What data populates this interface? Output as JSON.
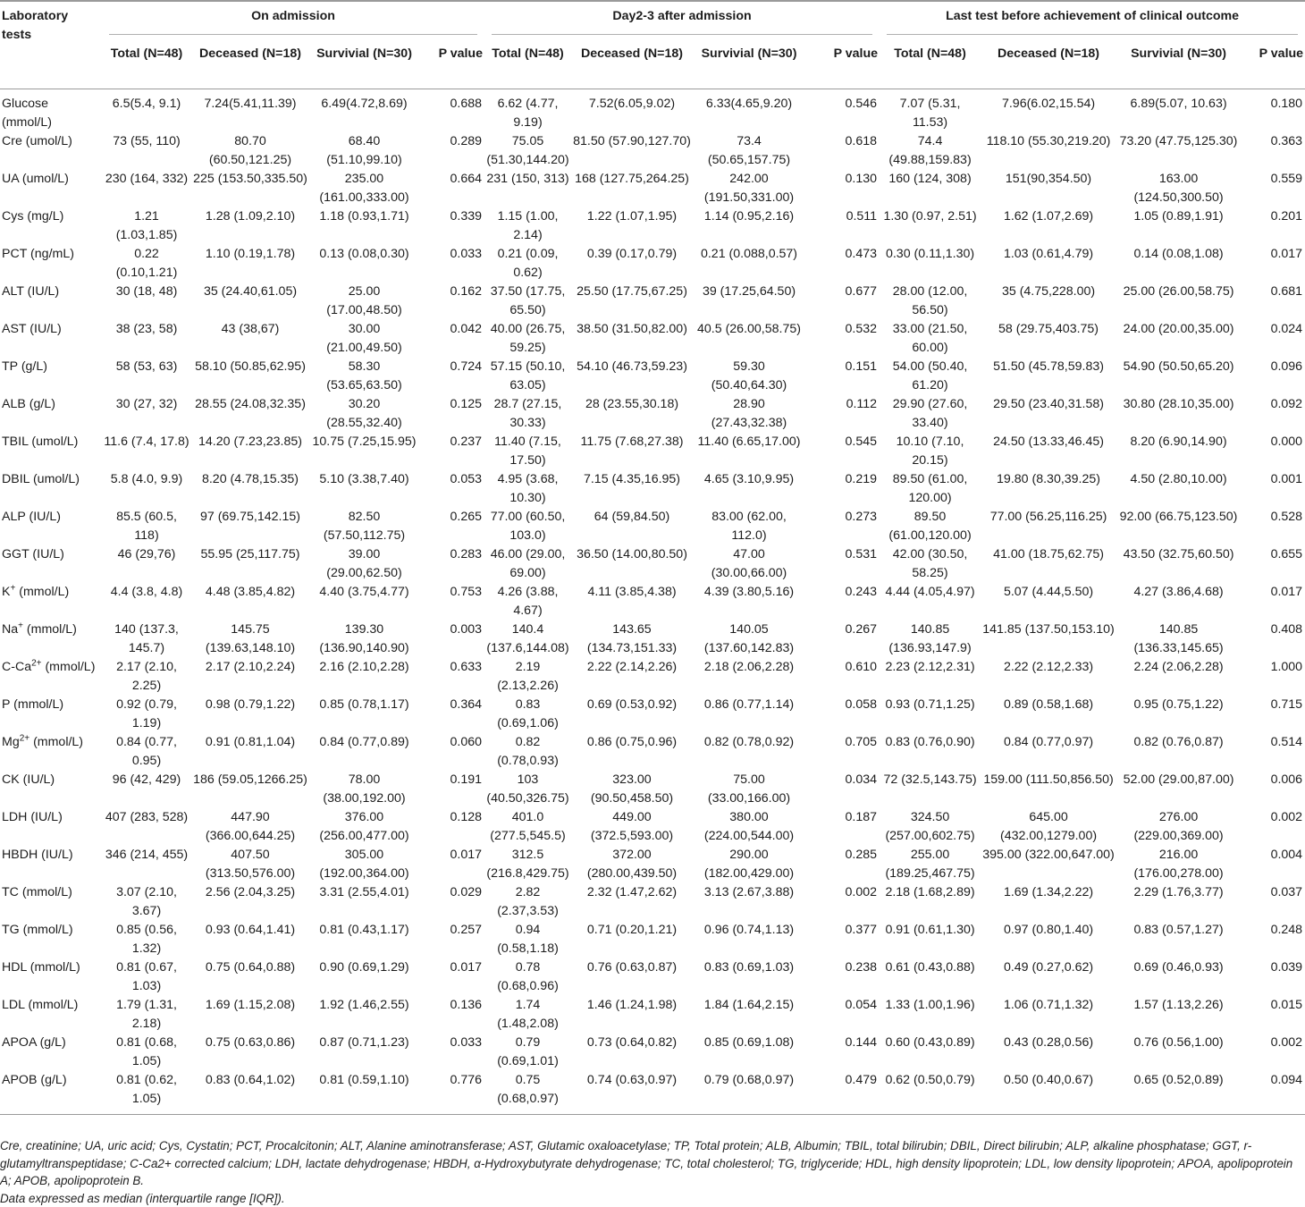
{
  "header": {
    "first_col": "Laboratory tests",
    "groups": [
      "On admission",
      "Day2-3 after admission",
      "Last test before achievement of clinical outcome"
    ],
    "subcols": [
      "Total (N=48)",
      "Deceased (N=18)",
      "Survivial (N=30)",
      "P value"
    ]
  },
  "rows": [
    {
      "name": "Glucose (mmol/L)",
      "c": [
        "6.5(5.4, 9.1)",
        "7.24(5.41,11.39)",
        "6.49(4.72,8.69)",
        "0.688",
        "6.62 (4.77, 9.19)",
        "7.52(6.05,9.02)",
        "6.33(4.65,9.20)",
        "0.546",
        "7.07 (5.31, 11.53)",
        "7.96(6.02,15.54)",
        "6.89(5.07, 10.63)",
        "0.180"
      ]
    },
    {
      "name": "Cre (umol/L)",
      "c": [
        "73 (55, 110)",
        "80.70 (60.50,121.25)",
        "68.40 (51.10,99.10)",
        "0.289",
        "75.05 (51.30,144.20)",
        "81.50 (57.90,127.70)",
        "73.4 (50.65,157.75)",
        "0.618",
        "74.4 (49.88,159.83)",
        "118.10 (55.30,219.20)",
        "73.20 (47.75,125.30)",
        "0.363"
      ]
    },
    {
      "name": "UA (umol/L)",
      "c": [
        "230 (164, 332)",
        "225 (153.50,335.50)",
        "235.00 (161.00,333.00)",
        "0.664",
        "231 (150, 313)",
        "168 (127.75,264.25)",
        "242.00 (191.50,331.00)",
        "0.130",
        "160 (124, 308)",
        "151(90,354.50)",
        "163.00 (124.50,300.50)",
        "0.559"
      ]
    },
    {
      "name": "Cys (mg/L)",
      "c": [
        "1.21 (1.03,1.85)",
        "1.28 (1.09,2.10)",
        "1.18 (0.93,1.71)",
        "0.339",
        "1.15 (1.00, 2.14)",
        "1.22 (1.07,1.95)",
        "1.14 (0.95,2.16)",
        "0.511",
        "1.30 (0.97, 2.51)",
        "1.62 (1.07,2.69)",
        "1.05 (0.89,1.91)",
        "0.201"
      ]
    },
    {
      "name": "PCT (ng/mL)",
      "c": [
        "0.22 (0.10,1.21)",
        "1.10 (0.19,1.78)",
        "0.13 (0.08,0.30)",
        "0.033",
        "0.21 (0.09, 0.62)",
        "0.39 (0.17,0.79)",
        "0.21 (0.088,0.57)",
        "0.473",
        "0.30 (0.11,1.30)",
        "1.03 (0.61,4.79)",
        "0.14 (0.08,1.08)",
        "0.017"
      ]
    },
    {
      "name": "ALT (IU/L)",
      "c": [
        "30 (18, 48)",
        "35 (24.40,61.05)",
        "25.00 (17.00,48.50)",
        "0.162",
        "37.50 (17.75, 65.50)",
        "25.50 (17.75,67.25)",
        "39 (17.25,64.50)",
        "0.677",
        "28.00 (12.00, 56.50)",
        "35 (4.75,228.00)",
        "25.00 (26.00,58.75)",
        "0.681"
      ]
    },
    {
      "name": "AST (IU/L)",
      "c": [
        "38 (23, 58)",
        "43 (38,67)",
        "30.00 (21.00,49.50)",
        "0.042",
        "40.00 (26.75, 59.25)",
        "38.50 (31.50,82.00)",
        "40.5 (26.00,58.75)",
        "0.532",
        "33.00 (21.50, 60.00)",
        "58 (29.75,403.75)",
        "24.00 (20.00,35.00)",
        "0.024"
      ]
    },
    {
      "name": "TP (g/L)",
      "c": [
        "58 (53, 63)",
        "58.10 (50.85,62.95)",
        "58.30 (53.65,63.50)",
        "0.724",
        "57.15 (50.10, 63.05)",
        "54.10 (46.73,59.23)",
        "59.30 (50.40,64.30)",
        "0.151",
        "54.00 (50.40, 61.20)",
        "51.50 (45.78,59.83)",
        "54.90 (50.50,65.20)",
        "0.096"
      ]
    },
    {
      "name": "ALB (g/L)",
      "c": [
        "30 (27, 32)",
        "28.55 (24.08,32.35)",
        "30.20 (28.55,32.40)",
        "0.125",
        "28.7 (27.15, 30.33)",
        "28 (23.55,30.18)",
        "28.90 (27.43,32.38)",
        "0.112",
        "29.90 (27.60, 33.40)",
        "29.50 (23.40,31.58)",
        "30.80 (28.10,35.00)",
        "0.092"
      ]
    },
    {
      "name": "TBIL (umol/L)",
      "c": [
        "11.6 (7.4, 17.8)",
        "14.20 (7.23,23.85)",
        "10.75 (7.25,15.95)",
        "0.237",
        "11.40 (7.15, 17.50)",
        "11.75 (7.68,27.38)",
        "11.40 (6.65,17.00)",
        "0.545",
        "10.10 (7.10, 20.15)",
        "24.50 (13.33,46.45)",
        "8.20 (6.90,14.90)",
        "0.000"
      ]
    },
    {
      "name": "DBIL (umol/L)",
      "c": [
        "5.8 (4.0, 9.9)",
        "8.20 (4.78,15.35)",
        "5.10 (3.38,7.40)",
        "0.053",
        "4.95 (3.68, 10.30)",
        "7.15 (4.35,16.95)",
        "4.65 (3.10,9.95)",
        "0.219",
        "89.50 (61.00, 120.00)",
        "19.80 (8.30,39.25)",
        "4.50 (2.80,10.00)",
        "0.001"
      ]
    },
    {
      "name": "ALP (IU/L)",
      "c": [
        "85.5 (60.5, 118)",
        "97 (69.75,142.15)",
        "82.50 (57.50,112.75)",
        "0.265",
        "77.00 (60.50, 103.0)",
        "64 (59,84.50)",
        "83.00 (62.00, 112.0)",
        "0.273",
        "89.50 (61.00,120.00)",
        "77.00 (56.25,116.25)",
        "92.00 (66.75,123.50)",
        "0.528"
      ]
    },
    {
      "name": "GGT (IU/L)",
      "c": [
        "46 (29,76)",
        "55.95 (25,117.75)",
        "39.00 (29.00,62.50)",
        "0.283",
        "46.00 (29.00, 69.00)",
        "36.50 (14.00,80.50)",
        "47.00 (30.00,66.00)",
        "0.531",
        "42.00 (30.50, 58.25)",
        "41.00 (18.75,62.75)",
        "43.50 (32.75,60.50)",
        "0.655"
      ]
    },
    {
      "name": "K+ (mmol/L)",
      "base": "K",
      "sup": "+",
      "unit": " (mmol/L)",
      "c": [
        "4.4 (3.8, 4.8)",
        "4.48 (3.85,4.82)",
        "4.40 (3.75,4.77)",
        "0.753",
        "4.26 (3.88, 4.67)",
        "4.11 (3.85,4.38)",
        "4.39 (3.80,5.16)",
        "0.243",
        "4.44 (4.05,4.97)",
        "5.07 (4.44,5.50)",
        "4.27 (3.86,4.68)",
        "0.017"
      ]
    },
    {
      "name": "Na+ (mmol/L)",
      "base": "Na",
      "sup": "+",
      "unit": " (mmol/L)",
      "c": [
        "140 (137.3, 145.7)",
        "145.75 (139.63,148.10)",
        "139.30 (136.90,140.90)",
        "0.003",
        "140.4 (137.6,144.08)",
        "143.65 (134.73,151.33)",
        "140.05 (137.60,142.83)",
        "0.267",
        "140.85 (136.93,147.9)",
        "141.85 (137.50,153.10)",
        "140.85 (136.33,145.65)",
        "0.408"
      ]
    },
    {
      "name": "C-Ca2+ (mmol/L)",
      "base": "C-Ca",
      "sup": "2+",
      "unit": " (mmol/L)",
      "c": [
        "2.17 (2.10, 2.25)",
        "2.17 (2.10,2.24)",
        "2.16 (2.10,2.28)",
        "0.633",
        "2.19 (2.13,2.26)",
        "2.22 (2.14,2.26)",
        "2.18 (2.06,2.28)",
        "0.610",
        "2.23 (2.12,2.31)",
        "2.22 (2.12,2.33)",
        "2.24 (2.06,2.28)",
        "1.000"
      ]
    },
    {
      "name": "P (mmol/L)",
      "c": [
        "0.92 (0.79, 1.19)",
        "0.98 (0.79,1.22)",
        "0.85 (0.78,1.17)",
        "0.364",
        "0.83 (0.69,1.06)",
        "0.69 (0.53,0.92)",
        "0.86 (0.77,1.14)",
        "0.058",
        "0.93 (0.71,1.25)",
        "0.89 (0.58,1.68)",
        "0.95 (0.75,1.22)",
        "0.715"
      ]
    },
    {
      "name": "Mg2+ (mmol/L)",
      "base": "Mg",
      "sup": "2+",
      "unit": " (mmol/L)",
      "c": [
        "0.84 (0.77, 0.95)",
        "0.91 (0.81,1.04)",
        "0.84 (0.77,0.89)",
        "0.060",
        "0.82 (0.78,0.93)",
        "0.86 (0.75,0.96)",
        "0.82 (0.78,0.92)",
        "0.705",
        "0.83 (0.76,0.90)",
        "0.84 (0.77,0.97)",
        "0.82 (0.76,0.87)",
        "0.514"
      ]
    },
    {
      "name": "CK (IU/L)",
      "c": [
        "96 (42, 429)",
        "186 (59.05,1266.25)",
        "78.00 (38.00,192.00)",
        "0.191",
        "103 (40.50,326.75)",
        "323.00 (90.50,458.50)",
        "75.00 (33.00,166.00)",
        "0.034",
        "72 (32.5,143.75)",
        "159.00 (111.50,856.50)",
        "52.00 (29.00,87.00)",
        "0.006"
      ]
    },
    {
      "name": "LDH (IU/L)",
      "c": [
        "407 (283, 528)",
        "447.90 (366.00,644.25)",
        "376.00 (256.00,477.00)",
        "0.128",
        "401.0 (277.5,545.5)",
        "449.00 (372.5,593.00)",
        "380.00 (224.00,544.00)",
        "0.187",
        "324.50 (257.00,602.75)",
        "645.00 (432.00,1279.00)",
        "276.00 (229.00,369.00)",
        "0.002"
      ]
    },
    {
      "name": "HBDH (IU/L)",
      "c": [
        "346 (214, 455)",
        "407.50 (313.50,576.00)",
        "305.00 (192.00,364.00)",
        "0.017",
        "312.5 (216.8,429.75)",
        "372.00 (280.00,439.50)",
        "290.00 (182.00,429.00)",
        "0.285",
        "255.00 (189.25,467.75)",
        "395.00 (322.00,647.00)",
        "216.00 (176.00,278.00)",
        "0.004"
      ]
    },
    {
      "name": "TC (mmol/L)",
      "c": [
        "3.07 (2.10, 3.67)",
        "2.56 (2.04,3.25)",
        "3.31 (2.55,4.01)",
        "0.029",
        "2.82 (2.37,3.53)",
        "2.32 (1.47,2.62)",
        "3.13 (2.67,3.88)",
        "0.002",
        "2.18 (1.68,2.89)",
        "1.69 (1.34,2.22)",
        "2.29 (1.76,3.77)",
        "0.037"
      ]
    },
    {
      "name": "TG (mmol/L)",
      "c": [
        "0.85 (0.56, 1.32)",
        "0.93 (0.64,1.41)",
        "0.81 (0.43,1.17)",
        "0.257",
        "0.94 (0.58,1.18)",
        "0.71 (0.20,1.21)",
        "0.96 (0.74,1.13)",
        "0.377",
        "0.91 (0.61,1.30)",
        "0.97 (0.80,1.40)",
        "0.83 (0.57,1.27)",
        "0.248"
      ]
    },
    {
      "name": "HDL (mmol/L)",
      "c": [
        "0.81 (0.67, 1.03)",
        "0.75 (0.64,0.88)",
        "0.90 (0.69,1.29)",
        "0.017",
        "0.78 (0.68,0.96)",
        "0.76 (0.63,0.87)",
        "0.83 (0.69,1.03)",
        "0.238",
        "0.61 (0.43,0.88)",
        "0.49 (0.27,0.62)",
        "0.69 (0.46,0.93)",
        "0.039"
      ]
    },
    {
      "name": "LDL (mmol/L)",
      "c": [
        "1.79 (1.31, 2.18)",
        "1.69 (1.15,2.08)",
        "1.92 (1.46,2.55)",
        "0.136",
        "1.74 (1.48,2.08)",
        "1.46 (1.24,1.98)",
        "1.84 (1.64,2.15)",
        "0.054",
        "1.33 (1.00,1.96)",
        "1.06 (0.71,1.32)",
        "1.57 (1.13,2.26)",
        "0.015"
      ]
    },
    {
      "name": "APOA (g/L)",
      "c": [
        "0.81 (0.68, 1.05)",
        "0.75 (0.63,0.86)",
        "0.87 (0.71,1.23)",
        "0.033",
        "0.79 (0.69,1.01)",
        "0.73 (0.64,0.82)",
        "0.85 (0.69,1.08)",
        "0.144",
        "0.60 (0.43,0.89)",
        "0.43 (0.28,0.56)",
        "0.76 (0.56,1.00)",
        "0.002"
      ]
    },
    {
      "name": "APOB (g/L)",
      "c": [
        "0.81 (0.62, 1.05)",
        "0.83 (0.64,1.02)",
        "0.81 (0.59,1.10)",
        "0.776",
        "0.75 (0.68,0.97)",
        "0.74 (0.63,0.97)",
        "0.79 (0.68,0.97)",
        "0.479",
        "0.62 (0.50,0.79)",
        "0.50 (0.40,0.67)",
        "0.65 (0.52,0.89)",
        "0.094"
      ]
    }
  ],
  "footnotes": {
    "abbrev": "Cre, creatinine; UA, uric acid; Cys, Cystatin; PCT, Procalcitonin; ALT, Alanine aminotransferase; AST, Glutamic oxaloacetylase; TP, Total protein; ALB, Albumin; TBIL, total bilirubin; DBIL, Direct bilirubin; ALP, alkaline phosphatase; GGT, r-glutamyltranspeptidase; C-Ca2+ corrected calcium; LDH, lactate dehydrogenase; HBDH, α-Hydroxybutyrate dehydrogenase; TC, total cholesterol; TG, triglyceride; HDL, high density lipoprotein; LDL, low density lipoprotein; APOA, apolipoprotein A; APOB, apolipoprotein B.",
    "expression": "Data expressed as median (interquartile range [IQR])."
  }
}
